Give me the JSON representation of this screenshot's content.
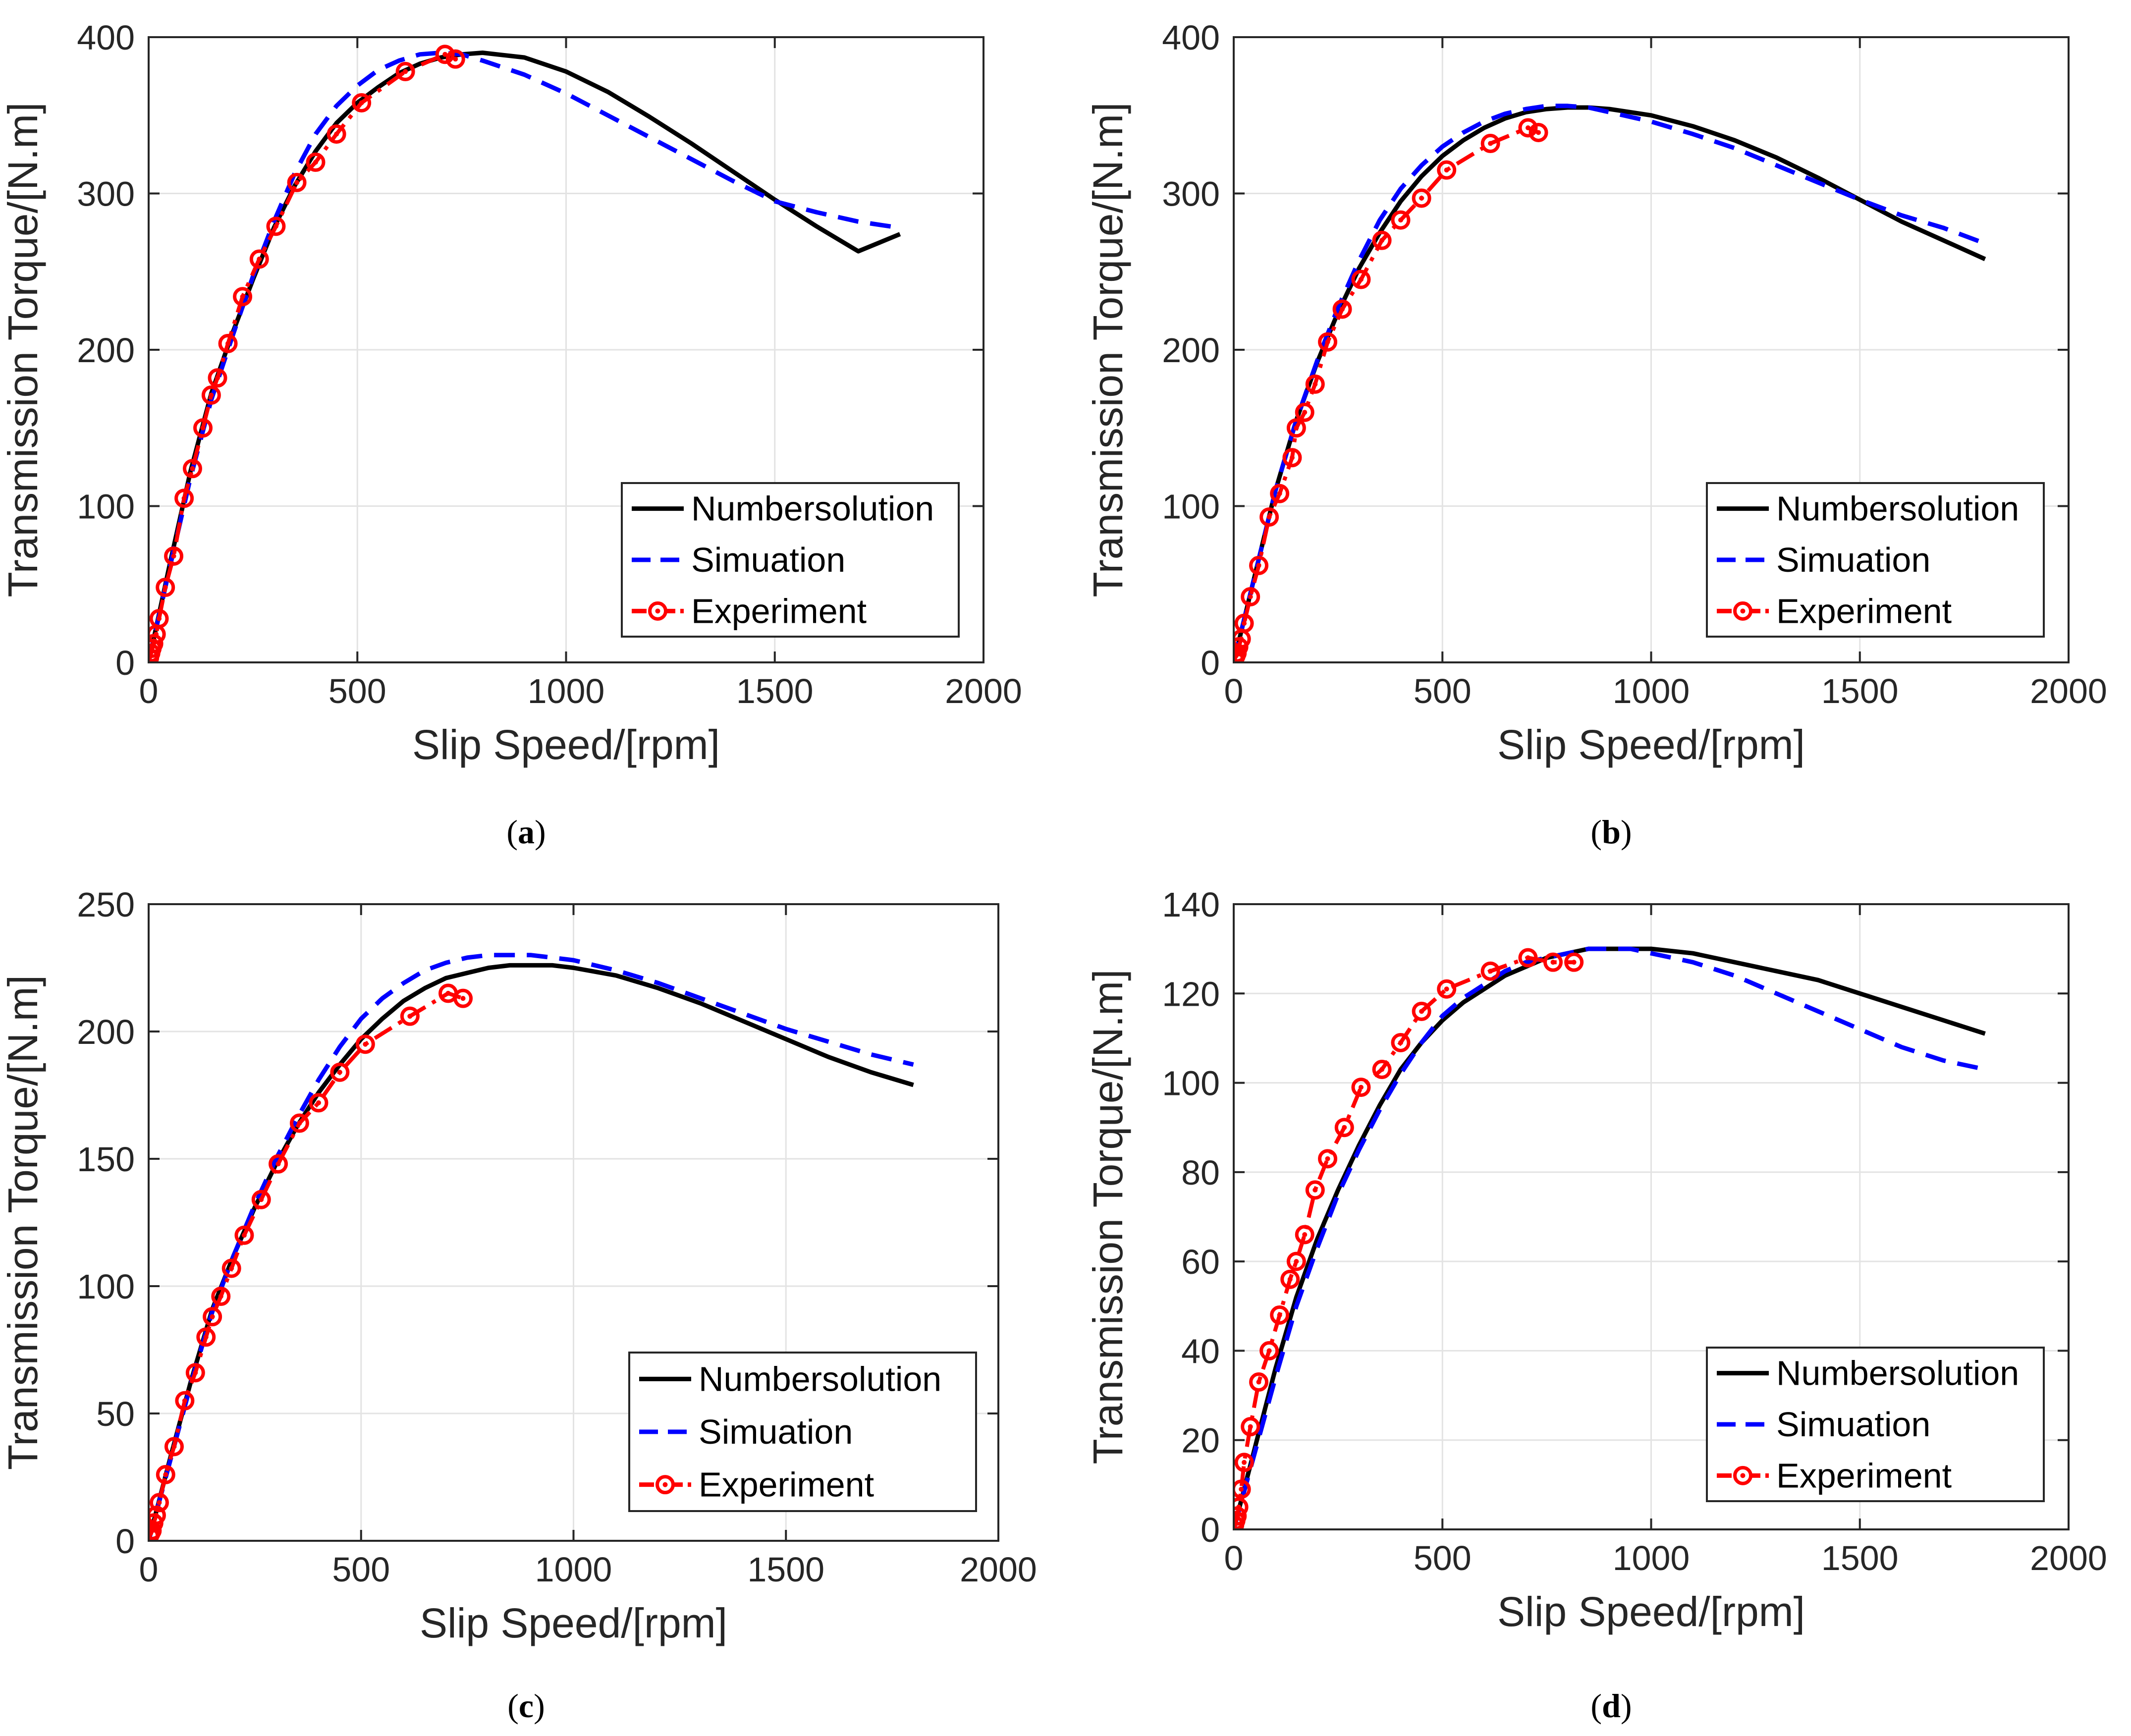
{
  "chart_data": [
    {
      "type": "line",
      "panel": "a",
      "caption_letter": "a",
      "xlabel": "Slip Speed/[rpm]",
      "ylabel": "Transmission Torque/[N.m]",
      "xlim": [
        0,
        2000
      ],
      "ylim": [
        0,
        400
      ],
      "xticks": [
        0,
        500,
        1000,
        1500,
        2000
      ],
      "yticks": [
        0,
        100,
        200,
        300,
        400
      ],
      "xtick_labels": [
        "0",
        "500",
        "1000",
        "1500",
        "2000"
      ],
      "ytick_labels": [
        "0",
        "100",
        "200",
        "300",
        "400"
      ],
      "grid": true,
      "legend_position": "bottom-right",
      "series": [
        {
          "name": "Numbersolution",
          "color": "#000000",
          "style": "solid",
          "x": [
            0,
            50,
            100,
            150,
            200,
            250,
            300,
            350,
            400,
            450,
            500,
            550,
            600,
            650,
            700,
            750,
            800,
            900,
            1000,
            1100,
            1200,
            1300,
            1400,
            1500,
            1600,
            1700,
            1800
          ],
          "y": [
            0,
            62,
            122,
            172,
            210,
            245,
            278,
            305,
            327,
            345,
            358,
            368,
            377,
            383,
            387,
            389,
            390,
            387,
            378,
            365,
            349,
            332,
            314,
            296,
            279,
            263,
            274
          ]
        },
        {
          "name": "Simuation",
          "color": "#0000ff",
          "style": "dashed",
          "x": [
            0,
            50,
            100,
            150,
            200,
            250,
            300,
            350,
            400,
            450,
            500,
            550,
            600,
            650,
            700,
            750,
            800,
            900,
            1000,
            1100,
            1200,
            1300,
            1400,
            1500,
            1600,
            1700,
            1800
          ],
          "y": [
            0,
            60,
            118,
            168,
            208,
            247,
            282,
            313,
            338,
            356,
            369,
            379,
            385,
            389,
            390,
            389,
            385,
            376,
            364,
            350,
            336,
            322,
            308,
            295,
            288,
            282,
            278
          ]
        },
        {
          "name": "Experiment",
          "color": "#ff0000",
          "style": "dash-dot",
          "marker": "circle",
          "x": [
            2,
            5,
            8,
            12,
            18,
            25,
            40,
            60,
            85,
            105,
            130,
            150,
            165,
            190,
            225,
            265,
            305,
            355,
            400,
            450,
            510,
            615,
            710,
            735
          ],
          "y": [
            3,
            6,
            9,
            12,
            18,
            28,
            48,
            68,
            105,
            124,
            150,
            171,
            182,
            204,
            234,
            258,
            279,
            307,
            320,
            338,
            358,
            378,
            389,
            386
          ]
        }
      ]
    },
    {
      "type": "line",
      "panel": "b",
      "caption_letter": "b",
      "xlabel": "Slip Speed/[rpm]",
      "ylabel": "Transmission Torque/[N.m]",
      "xlim": [
        0,
        2000
      ],
      "ylim": [
        0,
        400
      ],
      "xticks": [
        0,
        500,
        1000,
        1500,
        2000
      ],
      "yticks": [
        0,
        100,
        200,
        300,
        400
      ],
      "xtick_labels": [
        "0",
        "500",
        "1000",
        "1500",
        "2000"
      ],
      "ytick_labels": [
        "0",
        "100",
        "200",
        "300",
        "400"
      ],
      "grid": true,
      "legend_position": "bottom-right",
      "series": [
        {
          "name": "Numbersolution",
          "color": "#000000",
          "style": "solid",
          "x": [
            0,
            50,
            100,
            150,
            200,
            250,
            300,
            350,
            400,
            450,
            500,
            550,
            600,
            650,
            700,
            750,
            800,
            850,
            900,
            1000,
            1100,
            1200,
            1300,
            1400,
            1500,
            1600,
            1700,
            1800
          ],
          "y": [
            0,
            55,
            110,
            155,
            192,
            224,
            252,
            275,
            295,
            311,
            324,
            334,
            342,
            348,
            352,
            354,
            355,
            355,
            354,
            350,
            343,
            334,
            323,
            310,
            296,
            282,
            270,
            258
          ]
        },
        {
          "name": "Simuation",
          "color": "#0000ff",
          "style": "dashed",
          "x": [
            0,
            50,
            100,
            150,
            200,
            250,
            300,
            350,
            400,
            450,
            500,
            550,
            600,
            650,
            700,
            750,
            800,
            850,
            900,
            1000,
            1100,
            1200,
            1300,
            1400,
            1500,
            1600,
            1700,
            1800
          ],
          "y": [
            0,
            55,
            110,
            155,
            193,
            227,
            257,
            283,
            303,
            318,
            330,
            339,
            346,
            351,
            354,
            356,
            356,
            355,
            352,
            346,
            338,
            329,
            318,
            307,
            296,
            286,
            278,
            268
          ]
        },
        {
          "name": "Experiment",
          "color": "#ff0000",
          "style": "dash-dot",
          "marker": "circle",
          "x": [
            2,
            5,
            8,
            12,
            18,
            25,
            40,
            60,
            85,
            110,
            140,
            150,
            170,
            195,
            225,
            260,
            305,
            355,
            400,
            450,
            510,
            615,
            705,
            730
          ],
          "y": [
            2,
            4,
            6,
            10,
            15,
            25,
            42,
            62,
            93,
            108,
            131,
            150,
            160,
            178,
            205,
            226,
            245,
            270,
            283,
            297,
            315,
            332,
            342,
            339
          ]
        }
      ]
    },
    {
      "type": "line",
      "panel": "c",
      "caption_letter": "c",
      "xlabel": "Slip Speed/[rpm]",
      "ylabel": "Transmission Torque/[N.m]",
      "xlim": [
        0,
        2000
      ],
      "ylim": [
        0,
        250
      ],
      "xticks": [
        0,
        500,
        1000,
        1500,
        2000
      ],
      "yticks": [
        0,
        50,
        100,
        150,
        200,
        250
      ],
      "xtick_labels": [
        "0",
        "500",
        "1000",
        "1500",
        "2000"
      ],
      "ytick_labels": [
        "0",
        "50",
        "100",
        "150",
        "200",
        "250"
      ],
      "grid": true,
      "legend_position": "bottom-right",
      "series": [
        {
          "name": "Numbersolution",
          "color": "#000000",
          "style": "solid",
          "x": [
            0,
            50,
            100,
            150,
            200,
            250,
            300,
            350,
            400,
            450,
            500,
            550,
            600,
            650,
            700,
            750,
            800,
            850,
            900,
            950,
            1000,
            1100,
            1200,
            1300,
            1400,
            1500,
            1600,
            1700,
            1800
          ],
          "y": [
            0,
            32,
            63,
            91,
            112,
            131,
            148,
            163,
            176,
            187,
            197,
            205,
            212,
            217,
            221,
            223,
            225,
            226,
            226,
            226,
            225,
            222,
            217,
            211,
            204,
            197,
            190,
            184,
            179
          ]
        },
        {
          "name": "Simuation",
          "color": "#0000ff",
          "style": "dashed",
          "x": [
            0,
            50,
            100,
            150,
            200,
            250,
            300,
            350,
            400,
            450,
            500,
            550,
            600,
            650,
            700,
            750,
            800,
            850,
            900,
            950,
            1000,
            1100,
            1200,
            1300,
            1400,
            1500,
            1600,
            1700,
            1800
          ],
          "y": [
            0,
            31,
            62,
            90,
            112,
            132,
            150,
            166,
            181,
            194,
            205,
            213,
            219,
            224,
            227,
            229,
            230,
            230,
            230,
            229,
            228,
            224,
            219,
            213,
            207,
            201,
            196,
            191,
            187
          ]
        },
        {
          "name": "Experiment",
          "color": "#ff0000",
          "style": "dash-dot",
          "marker": "circle",
          "x": [
            2,
            5,
            8,
            12,
            18,
            25,
            40,
            60,
            85,
            110,
            135,
            150,
            170,
            195,
            225,
            265,
            305,
            355,
            400,
            450,
            510,
            615,
            705,
            740
          ],
          "y": [
            2,
            3,
            4,
            7,
            10,
            15,
            26,
            37,
            55,
            66,
            80,
            88,
            96,
            107,
            120,
            134,
            148,
            164,
            172,
            184,
            195,
            206,
            215,
            213
          ]
        }
      ]
    },
    {
      "type": "line",
      "panel": "d",
      "caption_letter": "d",
      "xlabel": "Slip Speed/[rpm]",
      "ylabel": "Transmission Torque/[N.m]",
      "xlim": [
        0,
        2000
      ],
      "ylim": [
        0,
        140
      ],
      "xticks": [
        0,
        500,
        1000,
        1500,
        2000
      ],
      "yticks": [
        0,
        20,
        40,
        60,
        80,
        100,
        120,
        140
      ],
      "xtick_labels": [
        "0",
        "500",
        "1000",
        "1500",
        "2000"
      ],
      "ytick_labels": [
        "0",
        "20",
        "40",
        "60",
        "80",
        "100",
        "120",
        "140"
      ],
      "grid": true,
      "legend_position": "bottom-right",
      "series": [
        {
          "name": "Numbersolution",
          "color": "#000000",
          "style": "solid",
          "x": [
            0,
            50,
            100,
            150,
            200,
            250,
            300,
            350,
            400,
            450,
            500,
            550,
            600,
            650,
            700,
            750,
            800,
            850,
            900,
            950,
            1000,
            1100,
            1200,
            1300,
            1400,
            1500,
            1600,
            1700,
            1800
          ],
          "y": [
            0,
            18,
            36,
            52,
            65,
            76,
            86,
            95,
            103,
            109,
            114,
            118,
            121,
            124,
            126,
            128,
            129,
            130,
            130,
            130,
            130,
            129,
            127,
            125,
            123,
            120,
            117,
            114,
            111
          ]
        },
        {
          "name": "Simuation",
          "color": "#0000ff",
          "style": "dashed",
          "x": [
            0,
            50,
            100,
            150,
            200,
            250,
            300,
            350,
            400,
            450,
            500,
            550,
            600,
            650,
            700,
            750,
            800,
            850,
            900,
            950,
            1000,
            1100,
            1200,
            1300,
            1400,
            1500,
            1600,
            1700,
            1800
          ],
          "y": [
            0,
            17,
            34,
            50,
            63,
            75,
            85,
            94,
            102,
            109,
            115,
            119,
            122,
            125,
            127,
            128,
            129,
            130,
            130,
            130,
            129,
            127,
            124,
            120,
            116,
            112,
            108,
            105,
            103
          ]
        },
        {
          "name": "Experiment",
          "color": "#ff0000",
          "style": "dash-dot",
          "marker": "circle",
          "x": [
            2,
            5,
            8,
            12,
            18,
            25,
            40,
            60,
            85,
            110,
            135,
            150,
            170,
            195,
            225,
            265,
            305,
            355,
            400,
            450,
            510,
            615,
            705,
            765,
            815
          ],
          "y": [
            1,
            2,
            3,
            5,
            9,
            15,
            23,
            33,
            40,
            48,
            56,
            60,
            66,
            76,
            83,
            90,
            99,
            103,
            109,
            116,
            121,
            125,
            128,
            127,
            127
          ]
        }
      ]
    }
  ],
  "captions": [
    "a",
    "b",
    "c",
    "d"
  ]
}
